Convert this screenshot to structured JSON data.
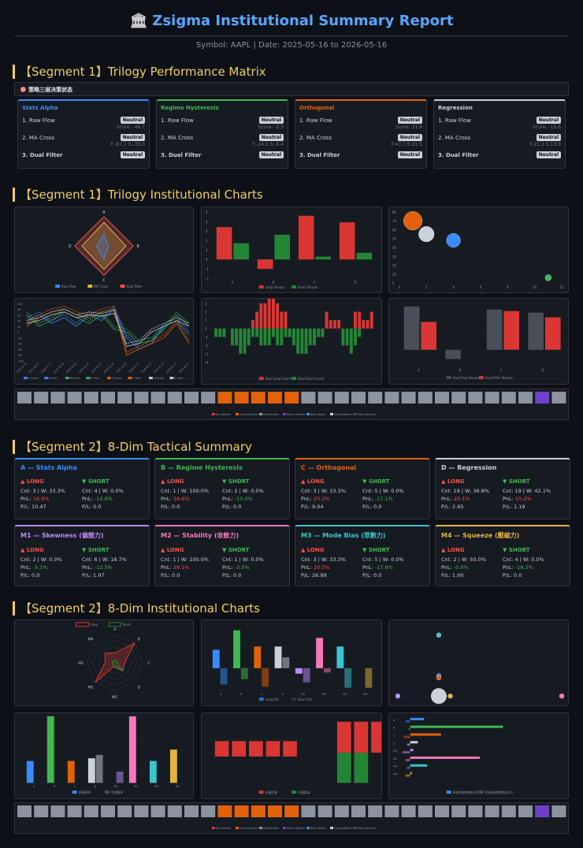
{
  "header": {
    "icon": "🏛",
    "title": "Zsigma Institutional Summary Report",
    "subtitle": "Symbol: AAPL | Date: 2025-05-16 to 2026-05-16"
  },
  "sections": {
    "s1": "【Segment 1】Trilogy Performance Matrix",
    "s2": "【Segment 1】Trilogy Institutional Charts",
    "s3": "【Segment 2】8-Dim Tactical Summary",
    "s4": "【Segment 2】8-Dim Institutional Charts"
  },
  "strip_label": "🎯 策略三层决策状态",
  "perf_cards": [
    {
      "title": "Stats Alpha",
      "color": "#388bfd",
      "r1": "1. Raw Flow",
      "b1": "Neutral",
      "n1": "Score: -46.7",
      "r2": "2. MA Cross",
      "b2": "Neutral",
      "n2": "F:-87.7 S:-30.0",
      "r3": "3. Dual Filter",
      "b3": "Neutral"
    },
    {
      "title": "Regime Hysteresis",
      "color": "#3fb950",
      "r1": "1. Raw Flow",
      "b1": "Neutral",
      "n1": "Score: -2.3",
      "r2": "2. MA Cross",
      "b2": "Neutral",
      "n2": "F:-24.5 S:-6.4",
      "r3": "3. Dual Filter",
      "b3": "Neutral"
    },
    {
      "title": "Orthogonal",
      "color": "#e36209",
      "r1": "1. Raw Flow",
      "b1": "Neutral",
      "n1": "Score: 31.6",
      "r2": "2. MA Cross",
      "b2": "Neutral",
      "n2": "F:47.7 S:31.5",
      "r3": "3. Dual Filter",
      "b3": "Neutral"
    },
    {
      "title": "Regression",
      "color": "#c9d1d9",
      "r1": "1. Raw Flow",
      "b1": "Neutral",
      "n1": "Score: -15.6",
      "r2": "2. MA Cross",
      "b2": "Neutral",
      "n2": "F:21.2 S:13.9",
      "r3": "3. Dual Filter",
      "b3": "Neutral"
    }
  ],
  "tactical_cards": [
    {
      "title": "A — Stats Alpha",
      "color": "#388bfd",
      "long": {
        "label": "▲ LONG",
        "cnt": "Cnt: 3 | W: 33.3%",
        "pnl_l": "PnL: ",
        "pnl": "16.9%",
        "pf": "P/L: 10.47"
      },
      "short": {
        "label": "▼ SHORT",
        "cnt": "Cnt: 4 | W: 0.0%",
        "pnl_l": "PnL: ",
        "pnl": "-14.8%",
        "pf": "P/L: 0.0"
      }
    },
    {
      "title": "B — Regime Hysteresis",
      "color": "#3fb950",
      "long": {
        "label": "▲ LONG",
        "cnt": "Cnt: 1 | W: 100.0%",
        "pnl_l": "PnL: ",
        "pnl": "34.6%",
        "pf": "P/L: 0.0"
      },
      "short": {
        "label": "▼ SHORT",
        "cnt": "Cnt: 2 | W: 0.0%",
        "pnl_l": "PnL: ",
        "pnl": "-10.0%",
        "pf": "P/L: 0.0"
      }
    },
    {
      "title": "C — Orthogonal",
      "color": "#e36209",
      "long": {
        "label": "▲ LONG",
        "cnt": "Cnt: 3 | W: 33.3%",
        "pnl_l": "PnL: ",
        "pnl": "20.2%",
        "pf": "P/L: 9.04"
      },
      "short": {
        "label": "▼ SHORT",
        "cnt": "Cnt: 5 | W: 0.0%",
        "pnl_l": "PnL: ",
        "pnl": "-17.1%",
        "pf": "P/L: 0.0"
      }
    },
    {
      "title": "D — Regression",
      "color": "#c9d1d9",
      "long": {
        "label": "▲ LONG",
        "cnt": "Cnt: 19 | W: 36.8%",
        "pnl_l": "PnL: ",
        "pnl": "20.1%",
        "pf": "P/L: 2.65"
      },
      "short": {
        "label": "▼ SHORT",
        "cnt": "Cnt: 19 | W: 42.1%",
        "pnl_l": "PnL: ",
        "pnl": "10.2%",
        "pf": "P/L: 1.19"
      }
    },
    {
      "title": "M1 — Skewness (偏態力)",
      "color": "#bc8cff",
      "long": {
        "label": "▲ LONG",
        "cnt": "Cnt: 2 | W: 0.0%",
        "pnl_l": "PnL: ",
        "pnl": "-5.1%",
        "pf": "P/L: 0.0"
      },
      "short": {
        "label": "▼ SHORT",
        "cnt": "Cnt: 6 | W: 16.7%",
        "pnl_l": "PnL: ",
        "pnl": "-12.5%",
        "pf": "P/L: 1.97"
      }
    },
    {
      "title": "M2 — Stability (收斂力)",
      "color": "#f778ba",
      "long": {
        "label": "▲ LONG",
        "cnt": "Cnt: 1 | W: 100.0%",
        "pnl_l": "PnL: ",
        "pnl": "28.1%",
        "pf": "P/L: 0.0"
      },
      "short": {
        "label": "▼ SHORT",
        "cnt": "Cnt: 1 | W: 0.0%",
        "pnl_l": "PnL: ",
        "pnl": "-3.5%",
        "pf": "P/L: 0.0"
      }
    },
    {
      "title": "M3 — Mode Bias (眾數力)",
      "color": "#39c5cf",
      "long": {
        "label": "▲ LONG",
        "cnt": "Cnt: 3 | W: 33.3%",
        "pnl_l": "PnL: ",
        "pnl": "20.5%",
        "pf": "P/L: 26.99"
      },
      "short": {
        "label": "▼ SHORT",
        "cnt": "Cnt: 5 | W: 0.0%",
        "pnl_l": "PnL: ",
        "pnl": "-17.6%",
        "pf": "P/L: 0.0"
      }
    },
    {
      "title": "M4 — Squeeze (壓縮力)",
      "color": "#e3b341",
      "long": {
        "label": "▲ LONG",
        "cnt": "Cnt: 2 | W: 50.0%",
        "pnl_l": "PnL: ",
        "pnl": "-0.0%",
        "pf": "P/L: 1.00"
      },
      "short": {
        "label": "▼ SHORT",
        "cnt": "Cnt: 4 | W: 0.0%",
        "pnl_l": "PnL: ",
        "pnl": "-18.2%",
        "pf": "P/L: 0.0"
      }
    }
  ],
  "chart_data": [
    {
      "type": "radar",
      "axes": [
        "A",
        "B",
        "C",
        "D"
      ],
      "series": [
        {
          "name": "Raw Flow",
          "color": "#388bfd",
          "values": [
            0.4,
            0.15,
            0.45,
            0.25
          ]
        },
        {
          "name": "MA Cross",
          "color": "#e3b341",
          "values": [
            0.8,
            0.75,
            0.8,
            0.75
          ]
        },
        {
          "name": "Dual Filter",
          "color": "#f85149",
          "values": [
            1,
            1,
            1,
            1
          ]
        }
      ],
      "legend": [
        "Raw Flow",
        "MA Cross",
        "Dual Filter"
      ]
    },
    {
      "type": "bar",
      "categories": [
        "A",
        "B",
        "C",
        "D"
      ],
      "series": [
        {
          "name": "Long Sharpe",
          "color": "#da3633",
          "values": [
            3.4,
            -1,
            4.6,
            3.9
          ]
        },
        {
          "name": "Short Sharpe",
          "color": "#238636",
          "values": [
            1.7,
            2.6,
            0.3,
            0.7
          ]
        }
      ],
      "ylim": [
        -2,
        5
      ],
      "yticks": [
        "-2",
        "-1",
        "0",
        "1",
        "2",
        "3",
        "4",
        "5"
      ]
    },
    {
      "type": "scatter",
      "points": [
        {
          "x": 1,
          "y": 70,
          "r": 12,
          "color": "#e36209"
        },
        {
          "x": 2,
          "y": 55,
          "r": 10,
          "color": "#c9d1d9"
        },
        {
          "x": 4,
          "y": 48,
          "r": 9,
          "color": "#388bfd"
        },
        {
          "x": 11,
          "y": 6,
          "r": 4,
          "color": "#3fb950"
        }
      ],
      "xticks": [
        "0",
        "2",
        "4",
        "6",
        "8",
        "10",
        "12"
      ],
      "yticks": [
        "0",
        "10",
        "20",
        "30",
        "40",
        "50",
        "60",
        "70",
        "80"
      ]
    },
    {
      "type": "line",
      "dates": [
        "2025-05-16",
        "2025-06-13",
        "2025-07-11",
        "2025-08-08",
        "2025-09-05",
        "2025-10-03",
        "2025-10-31",
        "2025-11-28",
        "2025-12-26",
        "2026-01-23",
        "2026-02-20",
        "2026-03-20",
        "2026-04-17",
        "2026-05-15"
      ],
      "series": [
        {
          "name": "A Score",
          "color": "#388bfd"
        },
        {
          "name": "A Fast",
          "color": "#388bfd"
        },
        {
          "name": "B Score",
          "color": "#3fb950"
        },
        {
          "name": "B Fast",
          "color": "#3fb950"
        },
        {
          "name": "C Score",
          "color": "#e36209"
        },
        {
          "name": "C Fast",
          "color": "#e36209"
        },
        {
          "name": "D Score",
          "color": "#c9d1d9"
        },
        {
          "name": "D Fast",
          "color": "#c9d1d9"
        }
      ],
      "yticks": [
        "-100",
        "-80",
        "-60",
        "-40",
        "-20",
        "0",
        "20",
        "40",
        "60",
        "80",
        "100"
      ]
    },
    {
      "type": "bar",
      "legend": [
        "Dual Long Count",
        "Dual Short Count"
      ],
      "yticks": [
        "-4",
        "-3",
        "-2",
        "-1",
        "0",
        "1",
        "2",
        "3"
      ]
    },
    {
      "type": "bar",
      "categories": [
        "A",
        "B",
        "C",
        "D"
      ],
      "series": [
        {
          "name": "Raw Flow Sharpe",
          "color": "#484f58",
          "values": [
            2.8,
            -0.6,
            2.6,
            2.4
          ]
        },
        {
          "name": "Dual Filter Sharpe",
          "color": "#da3633",
          "values": [
            1.8,
            0,
            2.5,
            2.1
          ]
        }
      ],
      "ylim": [
        -1,
        3
      ]
    },
    {
      "type": "heatmap",
      "legend": [
        "Bull Attack",
        "Accumulation",
        "Distribution",
        "Panic Bottom",
        "Bear Mode",
        "Consolidation",
        "Wait-and-see"
      ]
    },
    {
      "type": "radar",
      "axes": [
        "A",
        "B",
        "C",
        "D",
        "M1",
        "M2",
        "M3",
        "M4"
      ],
      "series": [
        {
          "name": "Long",
          "color": "#da3633"
        },
        {
          "name": "Short",
          "color": "#238636"
        }
      ],
      "ticks": [
        "0",
        "20",
        "40",
        "60",
        "80",
        "100"
      ]
    },
    {
      "type": "bar",
      "categories": [
        "A",
        "B",
        "C",
        "D",
        "M1",
        "M2",
        "M3",
        "M4"
      ],
      "series": [
        {
          "name": "Long PnL",
          "color": "#1f6feb",
          "values": [
            17,
            35,
            20,
            20,
            -5,
            28,
            20,
            0
          ]
        },
        {
          "name": "Short PnL",
          "color": "#30363d",
          "values": [
            -15,
            -10,
            -17,
            10,
            -13,
            -4,
            -18,
            -18
          ]
        }
      ],
      "ylim": [
        -20,
        40
      ]
    },
    {
      "type": "scatter",
      "points": [
        {
          "x": 25,
          "y": 30,
          "r": 3,
          "color": "#39c5cf"
        },
        {
          "x": 25,
          "y": 10,
          "r": 3,
          "color": "#388bfd"
        },
        {
          "x": 25,
          "y": 9,
          "r": 3,
          "color": "#e36209"
        },
        {
          "x": 25,
          "y": 0,
          "r": 10,
          "color": "#c9d1d9"
        },
        {
          "x": 32,
          "y": 0,
          "r": 3,
          "color": "#e3b341"
        },
        {
          "x": 0,
          "y": 0,
          "r": 3,
          "color": "#bc8cff"
        },
        {
          "x": 100,
          "y": 0,
          "r": 3,
          "color": "#f778ba"
        }
      ]
    },
    {
      "type": "bar",
      "categories": [
        "A",
        "B",
        "C",
        "D",
        "M1",
        "M2",
        "M3",
        "M4"
      ],
      "series": [
        {
          "name": "多頭勝率",
          "values": [
            33,
            100,
            33,
            37,
            0,
            100,
            33,
            50
          ]
        },
        {
          "name": "空頭勝率",
          "values": [
            0,
            0,
            0,
            42,
            17,
            0,
            0,
            0
          ]
        }
      ],
      "ylim": [
        0,
        100
      ]
    },
    {
      "type": "bar",
      "legend": [
        "多頭訊號",
        "空頭訊號"
      ]
    },
    {
      "type": "hbar",
      "categories": [
        "A",
        "B",
        "C",
        "D",
        "M1",
        "M2",
        "M3",
        "M4"
      ],
      "legend": [
        "多頭持倉時間佔比%",
        "空頭持倉時間佔比%"
      ]
    },
    {
      "type": "heatmap",
      "legend": [
        "Bull Attack",
        "Accumulation",
        "Distribution",
        "Panic Bottom",
        "Bear Mode",
        "Consolidation",
        "Wait-and-see"
      ]
    }
  ]
}
